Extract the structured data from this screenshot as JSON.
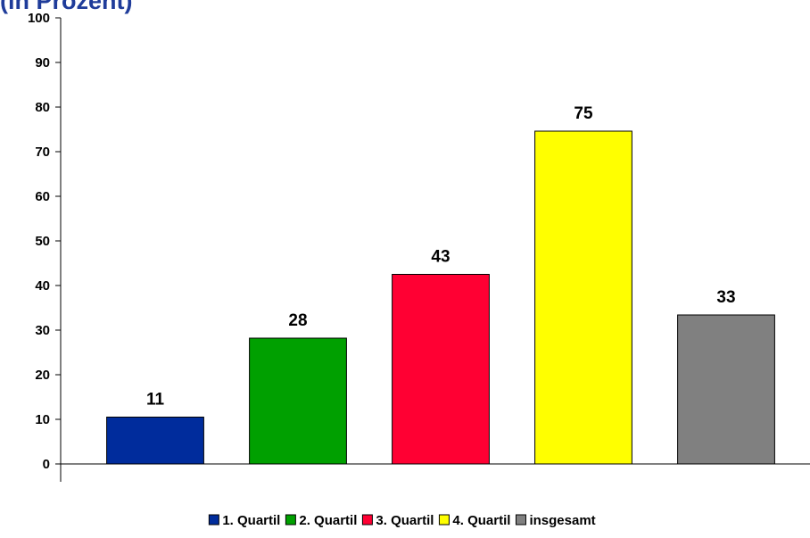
{
  "chart_data": {
    "type": "bar",
    "title": "(in Prozent)",
    "categories": [
      "1. Quartil",
      "2. Quartil",
      "3. Quartil",
      "4. Quartil",
      "insgesamt"
    ],
    "values": [
      10.5,
      28.2,
      42.5,
      74.6,
      33.4
    ],
    "value_labels": [
      "11",
      "28",
      "43",
      "75",
      "33"
    ],
    "colors": [
      "#002c9c",
      "#00a000",
      "#ff0033",
      "#ffff00",
      "#808080"
    ],
    "ylim": [
      0,
      100
    ],
    "yticks": [
      0,
      10,
      20,
      30,
      40,
      50,
      60,
      70,
      80,
      90,
      100
    ],
    "legend": "bottom"
  }
}
